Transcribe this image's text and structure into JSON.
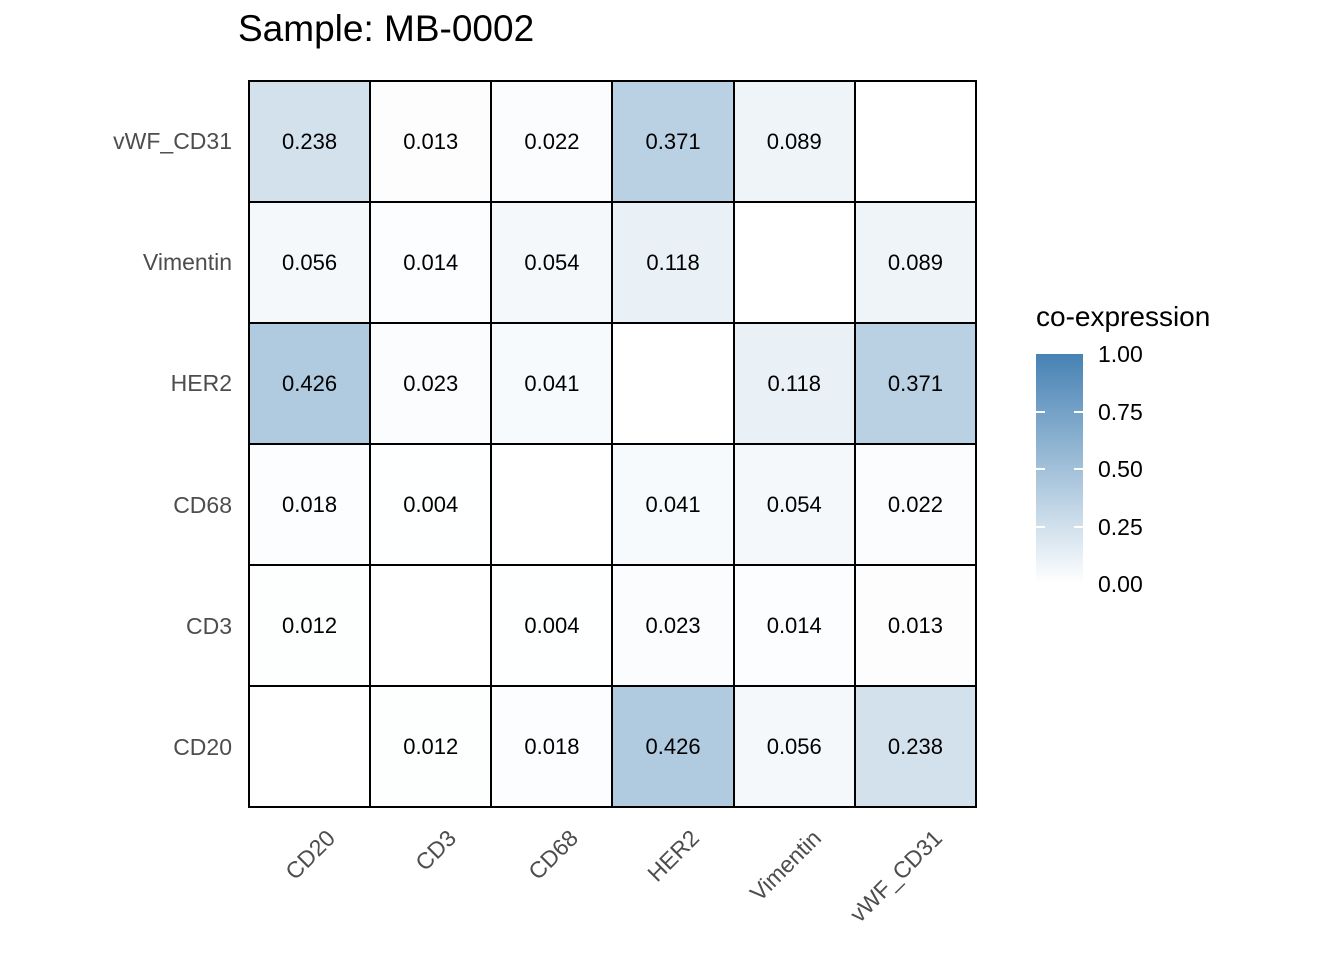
{
  "title": "Sample: MB-0002",
  "chart_data": {
    "type": "heatmap",
    "title": "Sample: MB-0002",
    "x_categories": [
      "CD20",
      "CD3",
      "CD68",
      "HER2",
      "Vimentin",
      "vWF_CD31"
    ],
    "y_categories_top_to_bottom": [
      "vWF_CD31",
      "Vimentin",
      "HER2",
      "CD68",
      "CD3",
      "CD20"
    ],
    "matrix_rows_top_to_bottom": [
      [
        0.238,
        0.013,
        0.022,
        0.371,
        0.089,
        null
      ],
      [
        0.056,
        0.014,
        0.054,
        0.118,
        null,
        0.089
      ],
      [
        0.426,
        0.023,
        0.041,
        null,
        0.118,
        0.371
      ],
      [
        0.018,
        0.004,
        null,
        0.041,
        0.054,
        0.022
      ],
      [
        0.012,
        null,
        0.004,
        0.023,
        0.014,
        0.013
      ],
      [
        null,
        0.012,
        0.018,
        0.426,
        0.056,
        0.238
      ]
    ],
    "value_decimals": 3,
    "grid_on": true,
    "legend": {
      "title": "co-expression",
      "position": "right",
      "min": 0.0,
      "max": 1.0,
      "ticks": [
        "1.00",
        "0.75",
        "0.50",
        "0.25",
        "0.00"
      ],
      "low_color": "#FFFFFF",
      "high_color": "#4682B4"
    },
    "colors": {
      "cell_border": "#000000",
      "na_fill": "#FFFFFF",
      "value_text": "#000000",
      "axis_text": "#4D4D4D",
      "title_text": "#000000"
    }
  }
}
